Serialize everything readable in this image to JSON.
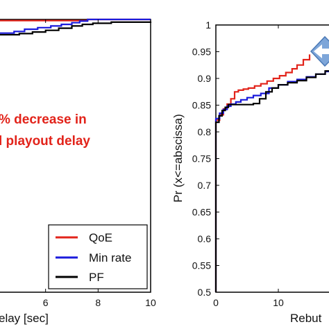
{
  "chart_data": [
    {
      "type": "line",
      "panel": "left",
      "title": "",
      "xlabel": "elay [sec]",
      "ylabel": "",
      "xlim": [
        4.0,
        10.0
      ],
      "ylim": [
        0.5,
        1.0
      ],
      "x_ticks": [
        "6",
        "8",
        "10"
      ],
      "tick_values": [
        6,
        8,
        10
      ],
      "partial_tick_label": "",
      "annotation": [
        "% decrease in",
        "l playout delay"
      ],
      "legend": {
        "placement": "bottom-right",
        "entries": [
          "QoE",
          "Min rate",
          "PF"
        ]
      },
      "series": [
        {
          "name": "QoE",
          "color": "#e2231a",
          "x": [
            4.0,
            7.6,
            10.0
          ],
          "y": [
            0.998,
            1.0,
            1.0
          ]
        },
        {
          "name": "Min rate",
          "color": "#1a1adc",
          "x": [
            4.0,
            4.8,
            5.2,
            5.7,
            6.2,
            6.6,
            7.0,
            7.3,
            7.6,
            10.0
          ],
          "y": [
            0.975,
            0.978,
            0.982,
            0.985,
            0.988,
            0.991,
            0.994,
            0.997,
            1.0,
            1.0
          ]
        },
        {
          "name": "PF",
          "color": "#000000",
          "x": [
            4.0,
            5.0,
            5.5,
            6.0,
            6.5,
            7.0,
            7.4,
            7.8,
            8.5,
            10.0
          ],
          "y": [
            0.972,
            0.974,
            0.977,
            0.98,
            0.984,
            0.988,
            0.991,
            0.993,
            0.995,
            0.996
          ]
        }
      ]
    },
    {
      "type": "line",
      "panel": "right",
      "title": "",
      "xlabel": "Rebut",
      "ylabel": "Pr (x<=abscissa)",
      "xlim": [
        0,
        20
      ],
      "ylim": [
        0.5,
        1.0
      ],
      "x_ticks": [
        "0",
        "10"
      ],
      "x_tick_values": [
        0,
        10
      ],
      "y_ticks": [
        "0.5",
        "0.55",
        "0.6",
        "0.65",
        "0.7",
        "0.75",
        "0.8",
        "0.85",
        "0.9",
        "0.95",
        "1"
      ],
      "y_tick_values": [
        0.5,
        0.55,
        0.6,
        0.65,
        0.7,
        0.75,
        0.8,
        0.85,
        0.9,
        0.95,
        1.0
      ],
      "marker": {
        "shape": "diamond-arrow",
        "color": "#7ea6d9"
      },
      "series": [
        {
          "name": "QoE",
          "color": "#e2231a",
          "x": [
            0,
            0,
            0.6,
            1.2,
            1.8,
            2.4,
            3.0,
            3.6,
            4.4,
            5.2,
            6.2,
            7.2,
            8.2,
            9.2,
            10.2,
            11.2,
            12.2,
            13.0,
            14.0,
            15.0
          ],
          "y": [
            0.5,
            0.822,
            0.832,
            0.843,
            0.852,
            0.862,
            0.875,
            0.878,
            0.88,
            0.882,
            0.886,
            0.89,
            0.895,
            0.9,
            0.905,
            0.911,
            0.918,
            0.925,
            0.935,
            0.945
          ]
        },
        {
          "name": "Min rate",
          "color": "#1a1adc",
          "x": [
            0,
            0,
            0.6,
            1.2,
            1.8,
            2.4,
            3.2,
            4.0,
            5.0,
            6.0,
            7.2,
            8.5,
            10.0,
            11.5,
            13.0,
            14.5,
            16.0,
            17.5,
            18.5
          ],
          "y": [
            0.5,
            0.825,
            0.835,
            0.842,
            0.848,
            0.852,
            0.856,
            0.86,
            0.864,
            0.868,
            0.872,
            0.882,
            0.888,
            0.894,
            0.898,
            0.903,
            0.908,
            0.913,
            0.918
          ]
        },
        {
          "name": "PF",
          "color": "#000000",
          "x": [
            0,
            0,
            0.5,
            1.0,
            1.5,
            2.0,
            3.0,
            4.0,
            5.0,
            6.0,
            7.0,
            8.0,
            9.0,
            10.0,
            11.5,
            13.0,
            14.5,
            16.0,
            17.5,
            18.5
          ],
          "y": [
            0.5,
            0.818,
            0.83,
            0.84,
            0.846,
            0.851,
            0.851,
            0.851,
            0.851,
            0.853,
            0.862,
            0.875,
            0.882,
            0.888,
            0.892,
            0.896,
            0.902,
            0.908,
            0.914,
            0.918
          ]
        }
      ]
    }
  ]
}
